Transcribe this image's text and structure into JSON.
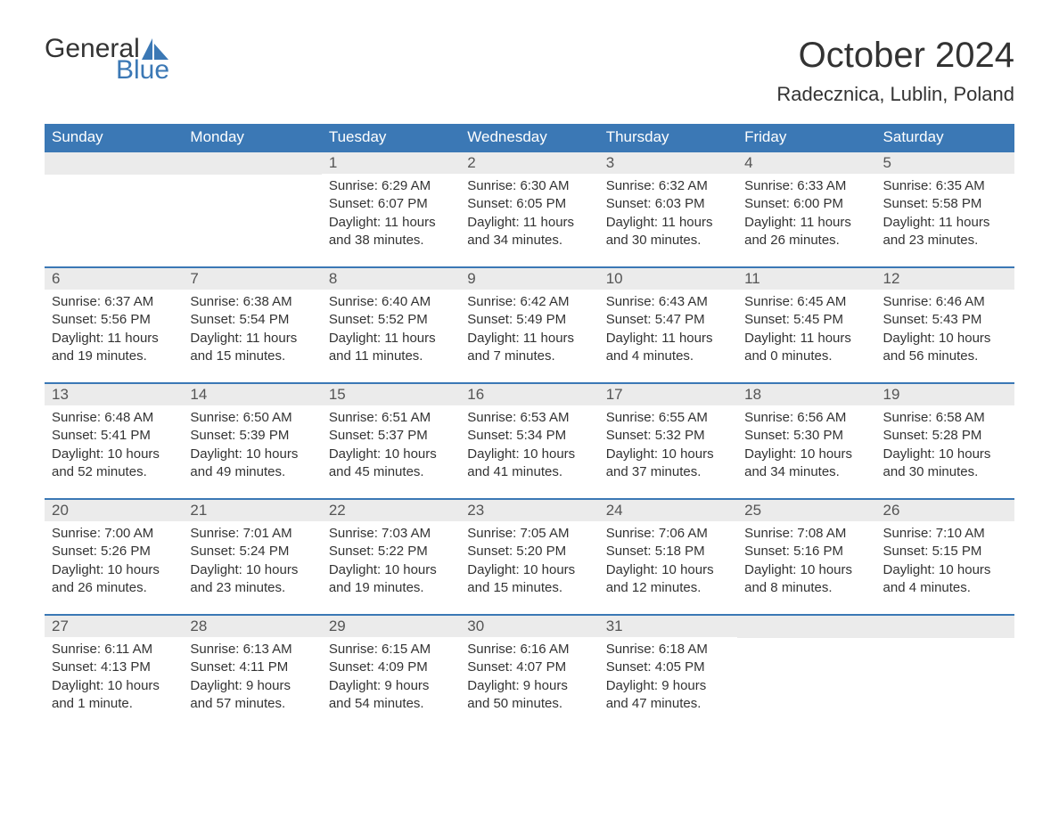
{
  "logo": {
    "general": "General",
    "blue": "Blue"
  },
  "header": {
    "month_title": "October 2024",
    "location": "Radecznica, Lublin, Poland"
  },
  "colors": {
    "header_bg": "#3b78b5",
    "header_text": "#ffffff",
    "daynum_bg": "#ebebeb",
    "body_text": "#333333",
    "border": "#3b78b5",
    "page_bg": "#ffffff"
  },
  "fonts": {
    "month_title_size": 40,
    "location_size": 22,
    "weekday_size": 17,
    "daynum_size": 17,
    "body_size": 15,
    "family": "Arial"
  },
  "weekdays": [
    "Sunday",
    "Monday",
    "Tuesday",
    "Wednesday",
    "Thursday",
    "Friday",
    "Saturday"
  ],
  "weeks": [
    [
      null,
      null,
      {
        "day": "1",
        "sunrise": "Sunrise: 6:29 AM",
        "sunset": "Sunset: 6:07 PM",
        "daylight1": "Daylight: 11 hours",
        "daylight2": "and 38 minutes."
      },
      {
        "day": "2",
        "sunrise": "Sunrise: 6:30 AM",
        "sunset": "Sunset: 6:05 PM",
        "daylight1": "Daylight: 11 hours",
        "daylight2": "and 34 minutes."
      },
      {
        "day": "3",
        "sunrise": "Sunrise: 6:32 AM",
        "sunset": "Sunset: 6:03 PM",
        "daylight1": "Daylight: 11 hours",
        "daylight2": "and 30 minutes."
      },
      {
        "day": "4",
        "sunrise": "Sunrise: 6:33 AM",
        "sunset": "Sunset: 6:00 PM",
        "daylight1": "Daylight: 11 hours",
        "daylight2": "and 26 minutes."
      },
      {
        "day": "5",
        "sunrise": "Sunrise: 6:35 AM",
        "sunset": "Sunset: 5:58 PM",
        "daylight1": "Daylight: 11 hours",
        "daylight2": "and 23 minutes."
      }
    ],
    [
      {
        "day": "6",
        "sunrise": "Sunrise: 6:37 AM",
        "sunset": "Sunset: 5:56 PM",
        "daylight1": "Daylight: 11 hours",
        "daylight2": "and 19 minutes."
      },
      {
        "day": "7",
        "sunrise": "Sunrise: 6:38 AM",
        "sunset": "Sunset: 5:54 PM",
        "daylight1": "Daylight: 11 hours",
        "daylight2": "and 15 minutes."
      },
      {
        "day": "8",
        "sunrise": "Sunrise: 6:40 AM",
        "sunset": "Sunset: 5:52 PM",
        "daylight1": "Daylight: 11 hours",
        "daylight2": "and 11 minutes."
      },
      {
        "day": "9",
        "sunrise": "Sunrise: 6:42 AM",
        "sunset": "Sunset: 5:49 PM",
        "daylight1": "Daylight: 11 hours",
        "daylight2": "and 7 minutes."
      },
      {
        "day": "10",
        "sunrise": "Sunrise: 6:43 AM",
        "sunset": "Sunset: 5:47 PM",
        "daylight1": "Daylight: 11 hours",
        "daylight2": "and 4 minutes."
      },
      {
        "day": "11",
        "sunrise": "Sunrise: 6:45 AM",
        "sunset": "Sunset: 5:45 PM",
        "daylight1": "Daylight: 11 hours",
        "daylight2": "and 0 minutes."
      },
      {
        "day": "12",
        "sunrise": "Sunrise: 6:46 AM",
        "sunset": "Sunset: 5:43 PM",
        "daylight1": "Daylight: 10 hours",
        "daylight2": "and 56 minutes."
      }
    ],
    [
      {
        "day": "13",
        "sunrise": "Sunrise: 6:48 AM",
        "sunset": "Sunset: 5:41 PM",
        "daylight1": "Daylight: 10 hours",
        "daylight2": "and 52 minutes."
      },
      {
        "day": "14",
        "sunrise": "Sunrise: 6:50 AM",
        "sunset": "Sunset: 5:39 PM",
        "daylight1": "Daylight: 10 hours",
        "daylight2": "and 49 minutes."
      },
      {
        "day": "15",
        "sunrise": "Sunrise: 6:51 AM",
        "sunset": "Sunset: 5:37 PM",
        "daylight1": "Daylight: 10 hours",
        "daylight2": "and 45 minutes."
      },
      {
        "day": "16",
        "sunrise": "Sunrise: 6:53 AM",
        "sunset": "Sunset: 5:34 PM",
        "daylight1": "Daylight: 10 hours",
        "daylight2": "and 41 minutes."
      },
      {
        "day": "17",
        "sunrise": "Sunrise: 6:55 AM",
        "sunset": "Sunset: 5:32 PM",
        "daylight1": "Daylight: 10 hours",
        "daylight2": "and 37 minutes."
      },
      {
        "day": "18",
        "sunrise": "Sunrise: 6:56 AM",
        "sunset": "Sunset: 5:30 PM",
        "daylight1": "Daylight: 10 hours",
        "daylight2": "and 34 minutes."
      },
      {
        "day": "19",
        "sunrise": "Sunrise: 6:58 AM",
        "sunset": "Sunset: 5:28 PM",
        "daylight1": "Daylight: 10 hours",
        "daylight2": "and 30 minutes."
      }
    ],
    [
      {
        "day": "20",
        "sunrise": "Sunrise: 7:00 AM",
        "sunset": "Sunset: 5:26 PM",
        "daylight1": "Daylight: 10 hours",
        "daylight2": "and 26 minutes."
      },
      {
        "day": "21",
        "sunrise": "Sunrise: 7:01 AM",
        "sunset": "Sunset: 5:24 PM",
        "daylight1": "Daylight: 10 hours",
        "daylight2": "and 23 minutes."
      },
      {
        "day": "22",
        "sunrise": "Sunrise: 7:03 AM",
        "sunset": "Sunset: 5:22 PM",
        "daylight1": "Daylight: 10 hours",
        "daylight2": "and 19 minutes."
      },
      {
        "day": "23",
        "sunrise": "Sunrise: 7:05 AM",
        "sunset": "Sunset: 5:20 PM",
        "daylight1": "Daylight: 10 hours",
        "daylight2": "and 15 minutes."
      },
      {
        "day": "24",
        "sunrise": "Sunrise: 7:06 AM",
        "sunset": "Sunset: 5:18 PM",
        "daylight1": "Daylight: 10 hours",
        "daylight2": "and 12 minutes."
      },
      {
        "day": "25",
        "sunrise": "Sunrise: 7:08 AM",
        "sunset": "Sunset: 5:16 PM",
        "daylight1": "Daylight: 10 hours",
        "daylight2": "and 8 minutes."
      },
      {
        "day": "26",
        "sunrise": "Sunrise: 7:10 AM",
        "sunset": "Sunset: 5:15 PM",
        "daylight1": "Daylight: 10 hours",
        "daylight2": "and 4 minutes."
      }
    ],
    [
      {
        "day": "27",
        "sunrise": "Sunrise: 6:11 AM",
        "sunset": "Sunset: 4:13 PM",
        "daylight1": "Daylight: 10 hours",
        "daylight2": "and 1 minute."
      },
      {
        "day": "28",
        "sunrise": "Sunrise: 6:13 AM",
        "sunset": "Sunset: 4:11 PM",
        "daylight1": "Daylight: 9 hours",
        "daylight2": "and 57 minutes."
      },
      {
        "day": "29",
        "sunrise": "Sunrise: 6:15 AM",
        "sunset": "Sunset: 4:09 PM",
        "daylight1": "Daylight: 9 hours",
        "daylight2": "and 54 minutes."
      },
      {
        "day": "30",
        "sunrise": "Sunrise: 6:16 AM",
        "sunset": "Sunset: 4:07 PM",
        "daylight1": "Daylight: 9 hours",
        "daylight2": "and 50 minutes."
      },
      {
        "day": "31",
        "sunrise": "Sunrise: 6:18 AM",
        "sunset": "Sunset: 4:05 PM",
        "daylight1": "Daylight: 9 hours",
        "daylight2": "and 47 minutes."
      },
      null,
      null
    ]
  ]
}
